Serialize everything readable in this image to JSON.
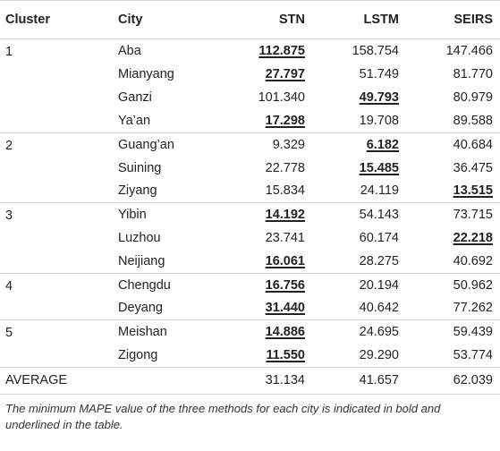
{
  "table": {
    "headers": {
      "cluster": "Cluster",
      "city": "City",
      "stn": "STN",
      "lstm": "LSTM",
      "seirs": "SEIRS"
    },
    "rows": [
      {
        "cluster": "1",
        "city": "Aba",
        "stn": "112.875",
        "lstm": "158.754",
        "seirs": "147.466",
        "best": "stn"
      },
      {
        "cluster": "",
        "city": "Mianyang",
        "stn": "27.797",
        "lstm": "51.749",
        "seirs": "81.770",
        "best": "stn"
      },
      {
        "cluster": "",
        "city": "Ganzi",
        "stn": "101.340",
        "lstm": "49.793",
        "seirs": "80.979",
        "best": "lstm"
      },
      {
        "cluster": "",
        "city": "Ya’an",
        "stn": "17.298",
        "lstm": "19.708",
        "seirs": "89.588",
        "best": "stn"
      },
      {
        "cluster": "2",
        "city": "Guang’an",
        "stn": "9.329",
        "lstm": "6.182",
        "seirs": "40.684",
        "best": "lstm"
      },
      {
        "cluster": "",
        "city": "Suining",
        "stn": "22.778",
        "lstm": "15.485",
        "seirs": "36.475",
        "best": "lstm"
      },
      {
        "cluster": "",
        "city": "Ziyang",
        "stn": "15.834",
        "lstm": "24.119",
        "seirs": "13.515",
        "best": "seirs"
      },
      {
        "cluster": "3",
        "city": "Yibin",
        "stn": "14.192",
        "lstm": "54.143",
        "seirs": "73.715",
        "best": "stn"
      },
      {
        "cluster": "",
        "city": "Luzhou",
        "stn": "23.741",
        "lstm": "60.174",
        "seirs": "22.218",
        "best": "seirs"
      },
      {
        "cluster": "",
        "city": "Neijiang",
        "stn": "16.061",
        "lstm": "28.275",
        "seirs": "40.692",
        "best": "stn"
      },
      {
        "cluster": "4",
        "city": "Chengdu",
        "stn": "16.756",
        "lstm": "20.194",
        "seirs": "50.962",
        "best": "stn"
      },
      {
        "cluster": "",
        "city": "Deyang",
        "stn": "31.440",
        "lstm": "40.642",
        "seirs": "77.262",
        "best": "stn"
      },
      {
        "cluster": "5",
        "city": "Meishan",
        "stn": "14.886",
        "lstm": "24.695",
        "seirs": "59.439",
        "best": "stn"
      },
      {
        "cluster": "",
        "city": "Zigong",
        "stn": "11.550",
        "lstm": "29.290",
        "seirs": "53.774",
        "best": "stn"
      }
    ],
    "average": {
      "label": "AVERAGE",
      "stn": "31.134",
      "lstm": "41.657",
      "seirs": "62.039"
    }
  },
  "footnote": "The minimum MAPE value of the three methods for each city is indicated in bold and underlined in the table."
}
